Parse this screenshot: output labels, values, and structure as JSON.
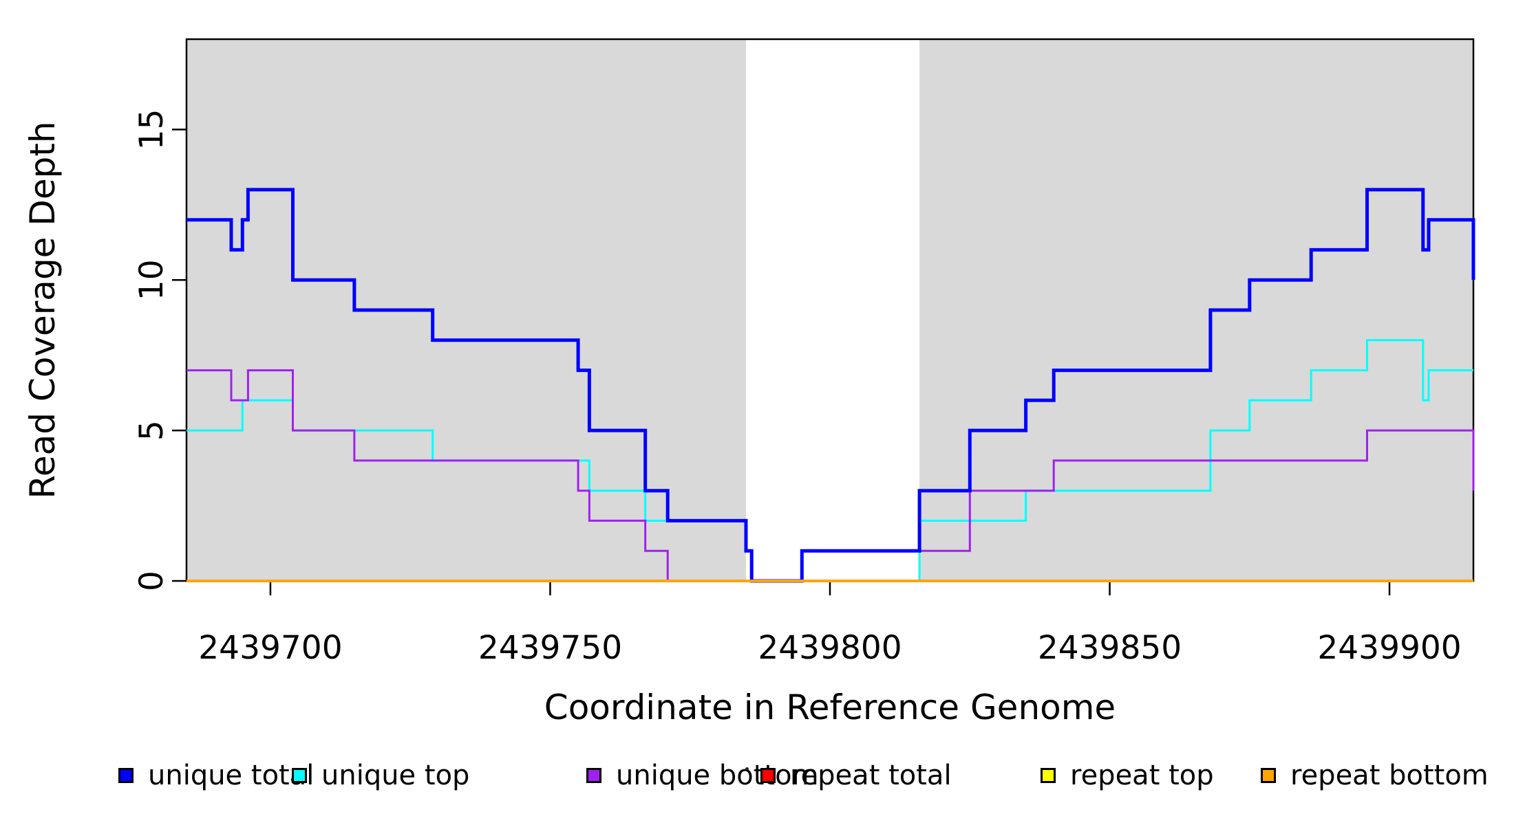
{
  "figure": {
    "background": "#FFFFFF",
    "frame_color": "#000000"
  },
  "chart_data": {
    "type": "line",
    "subtype": "step",
    "title": "",
    "xlabel": "Coordinate in Reference Genome",
    "ylabel": "Read Coverage Depth",
    "xlim": [
      2439685,
      2439915
    ],
    "ylim": [
      0,
      18
    ],
    "grid": false,
    "x_ticks": [
      {
        "value": 2439700,
        "label": "2439700"
      },
      {
        "value": 2439750,
        "label": "2439750"
      },
      {
        "value": 2439800,
        "label": "2439800"
      },
      {
        "value": 2439850,
        "label": "2439850"
      },
      {
        "value": 2439900,
        "label": "2439900"
      }
    ],
    "y_ticks": [
      {
        "value": 0,
        "label": "0"
      },
      {
        "value": 5,
        "label": "5"
      },
      {
        "value": 10,
        "label": "10"
      },
      {
        "value": 15,
        "label": "15"
      }
    ],
    "shaded_regions": {
      "color": "#D9D9D9",
      "ranges": [
        [
          2439685,
          2439785
        ],
        [
          2439816,
          2439915
        ]
      ]
    },
    "series": [
      {
        "id": "unique-total",
        "name": "unique total",
        "color": "#0000FF",
        "width": 5,
        "steps": [
          [
            2439685,
            12
          ],
          [
            2439693,
            11
          ],
          [
            2439695,
            12
          ],
          [
            2439696,
            13
          ],
          [
            2439704,
            10
          ],
          [
            2439715,
            9
          ],
          [
            2439729,
            8
          ],
          [
            2439755,
            7
          ],
          [
            2439757,
            5
          ],
          [
            2439767,
            3
          ],
          [
            2439771,
            2
          ],
          [
            2439785,
            1
          ],
          [
            2439786,
            0
          ],
          [
            2439795,
            1
          ],
          [
            2439816,
            3
          ],
          [
            2439825,
            5
          ],
          [
            2439835,
            6
          ],
          [
            2439840,
            7
          ],
          [
            2439868,
            9
          ],
          [
            2439875,
            10
          ],
          [
            2439886,
            11
          ],
          [
            2439896,
            13
          ],
          [
            2439906,
            11
          ],
          [
            2439907,
            12
          ],
          [
            2439915,
            10
          ]
        ]
      },
      {
        "id": "unique-top",
        "name": "unique top",
        "color": "#00FFFF",
        "width": 3,
        "steps": [
          [
            2439685,
            5
          ],
          [
            2439695,
            6
          ],
          [
            2439704,
            5
          ],
          [
            2439729,
            4
          ],
          [
            2439757,
            3
          ],
          [
            2439767,
            2
          ],
          [
            2439785,
            1
          ],
          [
            2439786,
            0
          ],
          [
            2439816,
            2
          ],
          [
            2439835,
            3
          ],
          [
            2439868,
            5
          ],
          [
            2439875,
            6
          ],
          [
            2439886,
            7
          ],
          [
            2439896,
            8
          ],
          [
            2439906,
            6
          ],
          [
            2439907,
            7
          ],
          [
            2439915,
            7
          ]
        ]
      },
      {
        "id": "unique-bottom",
        "name": "unique bottom",
        "color": "#A020F0",
        "width": 3,
        "steps": [
          [
            2439685,
            7
          ],
          [
            2439693,
            6
          ],
          [
            2439696,
            7
          ],
          [
            2439704,
            5
          ],
          [
            2439715,
            4
          ],
          [
            2439755,
            3
          ],
          [
            2439757,
            2
          ],
          [
            2439767,
            1
          ],
          [
            2439771,
            0
          ],
          [
            2439795,
            1
          ],
          [
            2439825,
            3
          ],
          [
            2439840,
            4
          ],
          [
            2439896,
            5
          ],
          [
            2439915,
            3
          ]
        ]
      },
      {
        "id": "repeat-total",
        "name": "repeat total",
        "color": "#FF0000",
        "width": 3,
        "steps": [
          [
            2439685,
            0
          ],
          [
            2439915,
            0
          ]
        ]
      },
      {
        "id": "repeat-top",
        "name": "repeat top",
        "color": "#FFFF00",
        "width": 3,
        "steps": [
          [
            2439685,
            0
          ],
          [
            2439915,
            0
          ]
        ]
      },
      {
        "id": "repeat-bottom",
        "name": "repeat bottom",
        "color": "#FFA500",
        "width": 4,
        "steps": [
          [
            2439685,
            0
          ],
          [
            2439915,
            0
          ]
        ]
      }
    ],
    "legend": {
      "position": "bottom",
      "items": [
        {
          "label": "unique total",
          "color": "#0000FF"
        },
        {
          "label": "unique top",
          "color": "#00FFFF"
        },
        {
          "label": "unique bottom",
          "color": "#A020F0"
        },
        {
          "label": "repeat total",
          "color": "#FF0000"
        },
        {
          "label": "repeat top",
          "color": "#FFFF00"
        },
        {
          "label": "repeat bottom",
          "color": "#FFA500"
        }
      ]
    }
  }
}
